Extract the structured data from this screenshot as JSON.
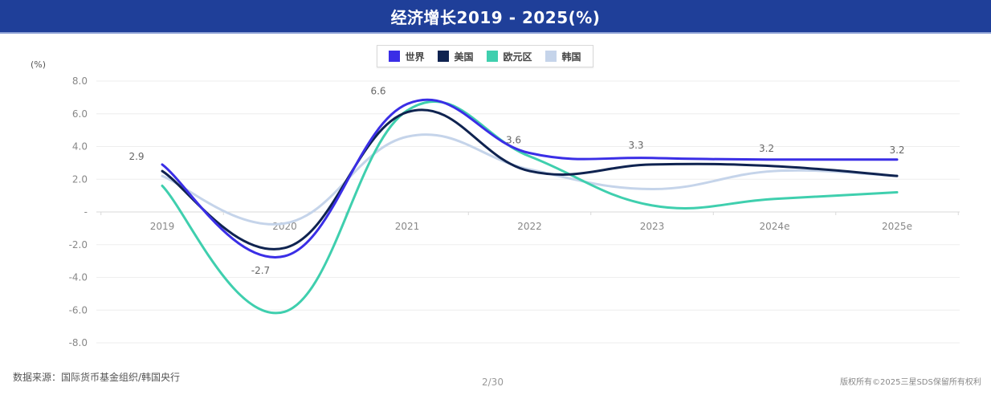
{
  "header": {
    "title": "经济增长2019 - 2025(%)"
  },
  "legend": [
    {
      "label": "世界",
      "color": "#3a2ee6"
    },
    {
      "label": "美国",
      "color": "#0f2350"
    },
    {
      "label": "欧元区",
      "color": "#3fcfae"
    },
    {
      "label": "韩国",
      "color": "#c5d4ea"
    }
  ],
  "axis": {
    "unit": "(%)",
    "y_ticks": [
      "8.0",
      "6.0",
      "4.0",
      "2.0",
      "-",
      "-2.0",
      "-4.0",
      "-6.0",
      "-8.0"
    ],
    "x_ticks": [
      "2019",
      "2020",
      "2021",
      "2022",
      "2023",
      "2024e",
      "2025e"
    ]
  },
  "annotations": [
    "2.9",
    "-2.7",
    "6.6",
    "3.6",
    "3.3",
    "3.2",
    "3.2"
  ],
  "footer": {
    "source": "数据来源：国际货币基金组织/韩国央行",
    "page": "2/30",
    "copyright": "版权所有©2025三星SDS保留所有权利"
  },
  "chart_data": {
    "type": "line",
    "title": "经济增长2019 - 2025(%)",
    "xlabel": "",
    "ylabel": "(%)",
    "ylim": [
      -8,
      8
    ],
    "grid": true,
    "legend_position": "top",
    "smooth": true,
    "categories": [
      "2019",
      "2020",
      "2021",
      "2022",
      "2023",
      "2024e",
      "2025e"
    ],
    "series": [
      {
        "name": "世界",
        "color": "#3a2ee6",
        "values": [
          2.9,
          -2.7,
          6.6,
          3.6,
          3.3,
          3.2,
          3.2
        ]
      },
      {
        "name": "美国",
        "color": "#0f2350",
        "values": [
          2.5,
          -2.2,
          6.1,
          2.5,
          2.9,
          2.8,
          2.2
        ]
      },
      {
        "name": "欧元区",
        "color": "#3fcfae",
        "values": [
          1.6,
          -6.1,
          6.2,
          3.4,
          0.4,
          0.8,
          1.2
        ]
      },
      {
        "name": "韩国",
        "color": "#c5d4ea",
        "values": [
          2.2,
          -0.7,
          4.6,
          2.6,
          1.4,
          2.5,
          2.2
        ]
      }
    ],
    "data_labels": [
      {
        "series": "世界",
        "category": "2019",
        "text": "2.9"
      },
      {
        "series": "世界",
        "category": "2020",
        "text": "-2.7"
      },
      {
        "series": "世界",
        "category": "2021",
        "text": "6.6"
      },
      {
        "series": "世界",
        "category": "2022",
        "text": "3.6"
      },
      {
        "series": "世界",
        "category": "2023",
        "text": "3.3"
      },
      {
        "series": "世界",
        "category": "2024e",
        "text": "3.2"
      },
      {
        "series": "世界",
        "category": "2025e",
        "text": "3.2"
      }
    ]
  }
}
